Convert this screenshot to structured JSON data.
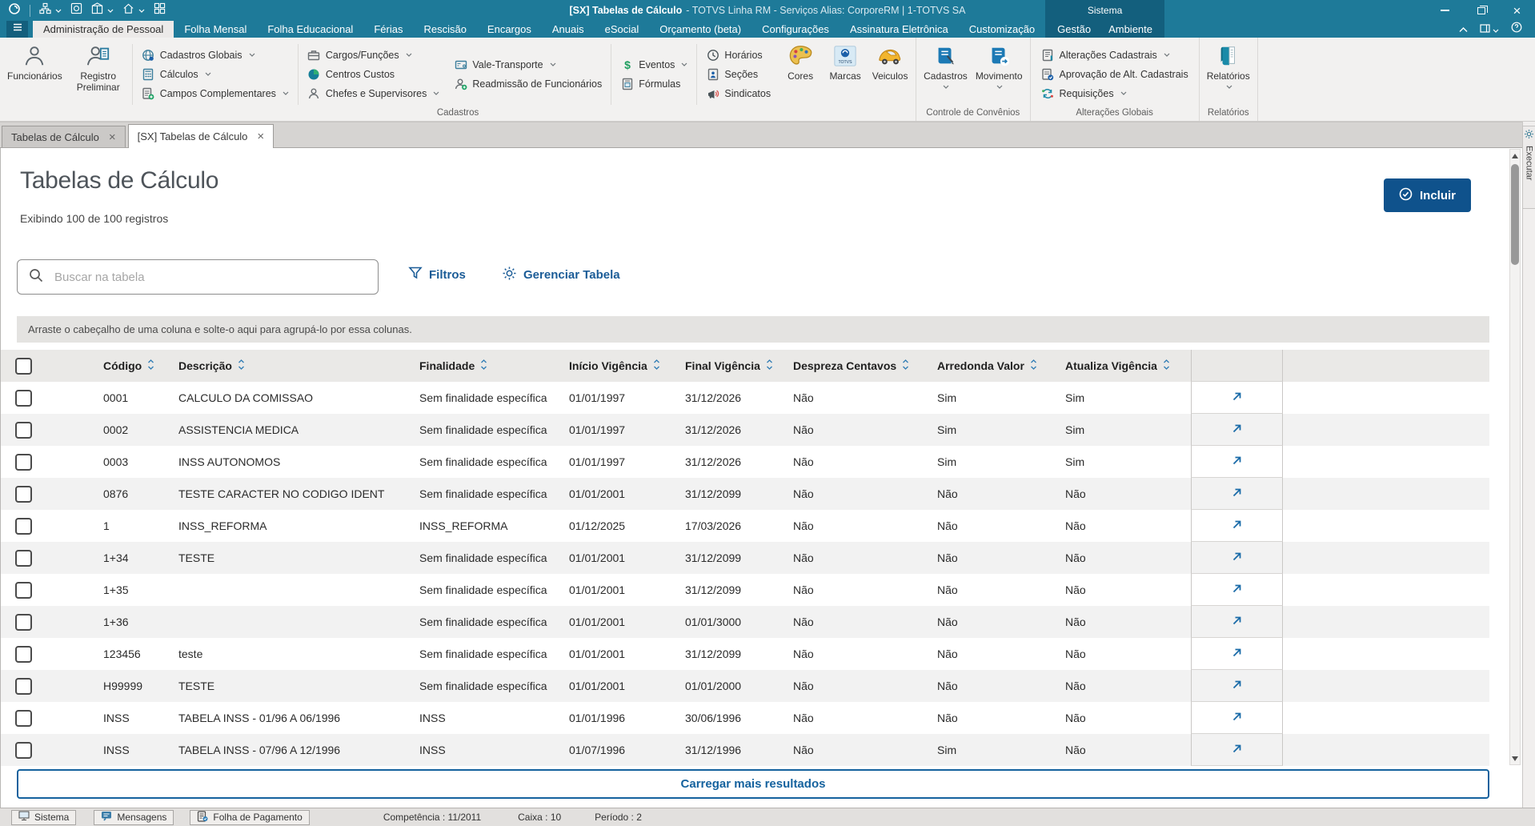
{
  "titlebar": {
    "title_main": "[SX] Tabelas de Cálculo",
    "title_suffix": "- TOTVS Linha RM - Serviços  Alias: CorporeRM | 1-TOTVS SA",
    "quick_icons": [
      {
        "name": "app-logo-icon",
        "icon": "app-logo"
      },
      {
        "name": "workflow-icon",
        "icon": "workflow",
        "dropdown": true
      },
      {
        "name": "record-icon",
        "icon": "record"
      },
      {
        "name": "package-icon",
        "icon": "package",
        "dropdown": true
      },
      {
        "name": "home-icon",
        "icon": "home",
        "dropdown": true
      },
      {
        "name": "grid-icon",
        "icon": "grid"
      }
    ]
  },
  "menubar": {
    "context_group_label": "Sistema",
    "tabs": [
      {
        "label": "Administração de Pessoal",
        "active": true
      },
      {
        "label": "Folha Mensal"
      },
      {
        "label": "Folha Educacional"
      },
      {
        "label": "Férias"
      },
      {
        "label": "Rescisão"
      },
      {
        "label": "Encargos"
      },
      {
        "label": "Anuais"
      },
      {
        "label": "eSocial"
      },
      {
        "label": "Orçamento (beta)"
      },
      {
        "label": "Configurações"
      },
      {
        "label": "Assinatura Eletrônica"
      },
      {
        "label": "Customização"
      },
      {
        "label": "Gestão",
        "context": true
      },
      {
        "label": "Ambiente",
        "context": true
      }
    ]
  },
  "ribbon": {
    "sections": [
      {
        "label": "Cadastros",
        "blocks": [
          {
            "kind": "big",
            "items": [
              {
                "label": "Funcionários",
                "icon": "person"
              },
              {
                "label": "Registro Preliminar",
                "icon": "person-doc"
              }
            ]
          },
          {
            "kind": "divider"
          },
          {
            "kind": "stack",
            "items": [
              {
                "label": "Cadastros Globais",
                "icon": "globe",
                "dropdown": true
              },
              {
                "label": "Cálculos",
                "icon": "calc",
                "dropdown": true
              },
              {
                "label": "Campos Complementares",
                "icon": "doc-plus",
                "dropdown": true
              }
            ]
          },
          {
            "kind": "divider"
          },
          {
            "kind": "stack",
            "items": [
              {
                "label": "Cargos/Funções",
                "icon": "briefcase",
                "dropdown": true
              },
              {
                "label": "Centros Custos",
                "icon": "pie"
              },
              {
                "label": "Chefes e Supervisores",
                "icon": "person16",
                "dropdown": true
              }
            ]
          },
          {
            "kind": "stack",
            "items": [
              {
                "label": "Vale-Transporte",
                "icon": "card",
                "dropdown": true
              },
              {
                "label": "Readmissão de Funcionários",
                "icon": "person-plus"
              }
            ]
          },
          {
            "kind": "divider"
          },
          {
            "kind": "stack",
            "items": [
              {
                "label": "Eventos",
                "icon": "dollar",
                "dropdown": true
              },
              {
                "label": "Fórmulas",
                "icon": "doc-f"
              }
            ]
          },
          {
            "kind": "divider"
          },
          {
            "kind": "stack",
            "items": [
              {
                "label": "Horários",
                "icon": "clock"
              },
              {
                "label": "Seções",
                "icon": "doc-sec"
              },
              {
                "label": "Sindicatos",
                "icon": "megaphone"
              }
            ]
          },
          {
            "kind": "big",
            "items": [
              {
                "label": "Cores",
                "icon": "palette"
              },
              {
                "label": "Marcas",
                "icon": "totvs"
              },
              {
                "label": "Veiculos",
                "icon": "car"
              }
            ]
          }
        ]
      },
      {
        "label": "Controle de Convênios",
        "blocks": [
          {
            "kind": "big",
            "items": [
              {
                "label": "Cadastros",
                "icon": "book-pen",
                "dropdown": true
              },
              {
                "label": "Movimento",
                "icon": "book-arrow",
                "dropdown": true
              }
            ]
          }
        ]
      },
      {
        "label": "Alterações Globais",
        "blocks": [
          {
            "kind": "stack",
            "items": [
              {
                "label": "Alterações Cadastrais",
                "icon": "doc-lines",
                "dropdown": true
              },
              {
                "label": "Aprovação de Alt. Cadastrais",
                "icon": "doc-check"
              },
              {
                "label": "Requisições",
                "icon": "refresh",
                "dropdown": true
              }
            ]
          }
        ]
      },
      {
        "label": "Relatórios",
        "blocks": [
          {
            "kind": "big",
            "items": [
              {
                "label": "Relatórios",
                "icon": "book-teal",
                "dropdown": true
              }
            ]
          }
        ]
      }
    ]
  },
  "doctabs": {
    "close_symbol": "×",
    "tabs": [
      {
        "label": "Tabelas de Cálculo"
      },
      {
        "label": "[SX] Tabelas de Cálculo",
        "active": true
      }
    ]
  },
  "page": {
    "title": "Tabelas de Cálculo",
    "subtitle": "Exibindo 100 de 100 registros",
    "include_label": "Incluir",
    "search_placeholder": "Buscar na tabela",
    "filters_label": "Filtros",
    "manage_label": "Gerenciar Tabela",
    "groupby_hint": "Arraste o cabeçalho de uma coluna e solte-o aqui para agrupá-lo por essa colunas.",
    "load_more_label": "Carregar mais resultados",
    "executar_label": "Executar"
  },
  "table": {
    "columns": [
      "Código",
      "Descrição",
      "Finalidade",
      "Início Vigência",
      "Final Vigência",
      "Despreza Centavos",
      "Arredonda Valor",
      "Atualiza Vigência"
    ],
    "rows": [
      [
        "0001",
        "CALCULO DA COMISSAO",
        "Sem finalidade específica",
        "01/01/1997",
        "31/12/2026",
        "Não",
        "Sim",
        "Sim"
      ],
      [
        "0002",
        "ASSISTENCIA MEDICA",
        "Sem finalidade específica",
        "01/01/1997",
        "31/12/2026",
        "Não",
        "Sim",
        "Sim"
      ],
      [
        "0003",
        "INSS AUTONOMOS",
        "Sem finalidade específica",
        "01/01/1997",
        "31/12/2026",
        "Não",
        "Sim",
        "Sim"
      ],
      [
        "0876",
        "TESTE CARACTER NO CODIGO IDENT",
        "Sem finalidade específica",
        "01/01/2001",
        "31/12/2099",
        "Não",
        "Não",
        "Não"
      ],
      [
        "1",
        "INSS_REFORMA",
        "INSS_REFORMA",
        "01/12/2025",
        "17/03/2026",
        "Não",
        "Não",
        "Não"
      ],
      [
        "1+34",
        "TESTE",
        "Sem finalidade específica",
        "01/01/2001",
        "31/12/2099",
        "Não",
        "Não",
        "Não"
      ],
      [
        "1+35",
        "",
        "Sem finalidade específica",
        "01/01/2001",
        "31/12/2099",
        "Não",
        "Não",
        "Não"
      ],
      [
        "1+36",
        "",
        "Sem finalidade específica",
        "01/01/2001",
        "01/01/3000",
        "Não",
        "Não",
        "Não"
      ],
      [
        "123456",
        "teste",
        "Sem finalidade específica",
        "01/01/2001",
        "31/12/2099",
        "Não",
        "Não",
        "Não"
      ],
      [
        "H99999",
        "TESTE",
        "Sem finalidade específica",
        "01/01/2001",
        "01/01/2000",
        "Não",
        "Não",
        "Não"
      ],
      [
        "INSS",
        "TABELA INSS - 01/96 A 06/1996",
        "INSS",
        "01/01/1996",
        "30/06/1996",
        "Não",
        "Não",
        "Não"
      ],
      [
        "INSS",
        "TABELA INSS - 07/96 A 12/1996",
        "INSS",
        "01/07/1996",
        "31/12/1996",
        "Não",
        "Sim",
        "Não"
      ]
    ]
  },
  "statusbar": {
    "items": [
      {
        "label": "Sistema",
        "icon": "monitor",
        "button": true
      },
      {
        "label": "Mensagens",
        "icon": "chat",
        "button": true
      },
      {
        "label": "Folha de Pagamento",
        "icon": "payroll",
        "button": true
      },
      {
        "label": "Competência : 11/2011"
      },
      {
        "label": "Caixa : 10"
      },
      {
        "label": "Período : 2"
      }
    ]
  },
  "colors": {
    "titlebar_teal": "#1e7a99",
    "context_teal": "#135f7d",
    "accent_blue": "#0f528c",
    "link_blue": "#1b5c97",
    "row_alt": "#f2f2f2"
  }
}
